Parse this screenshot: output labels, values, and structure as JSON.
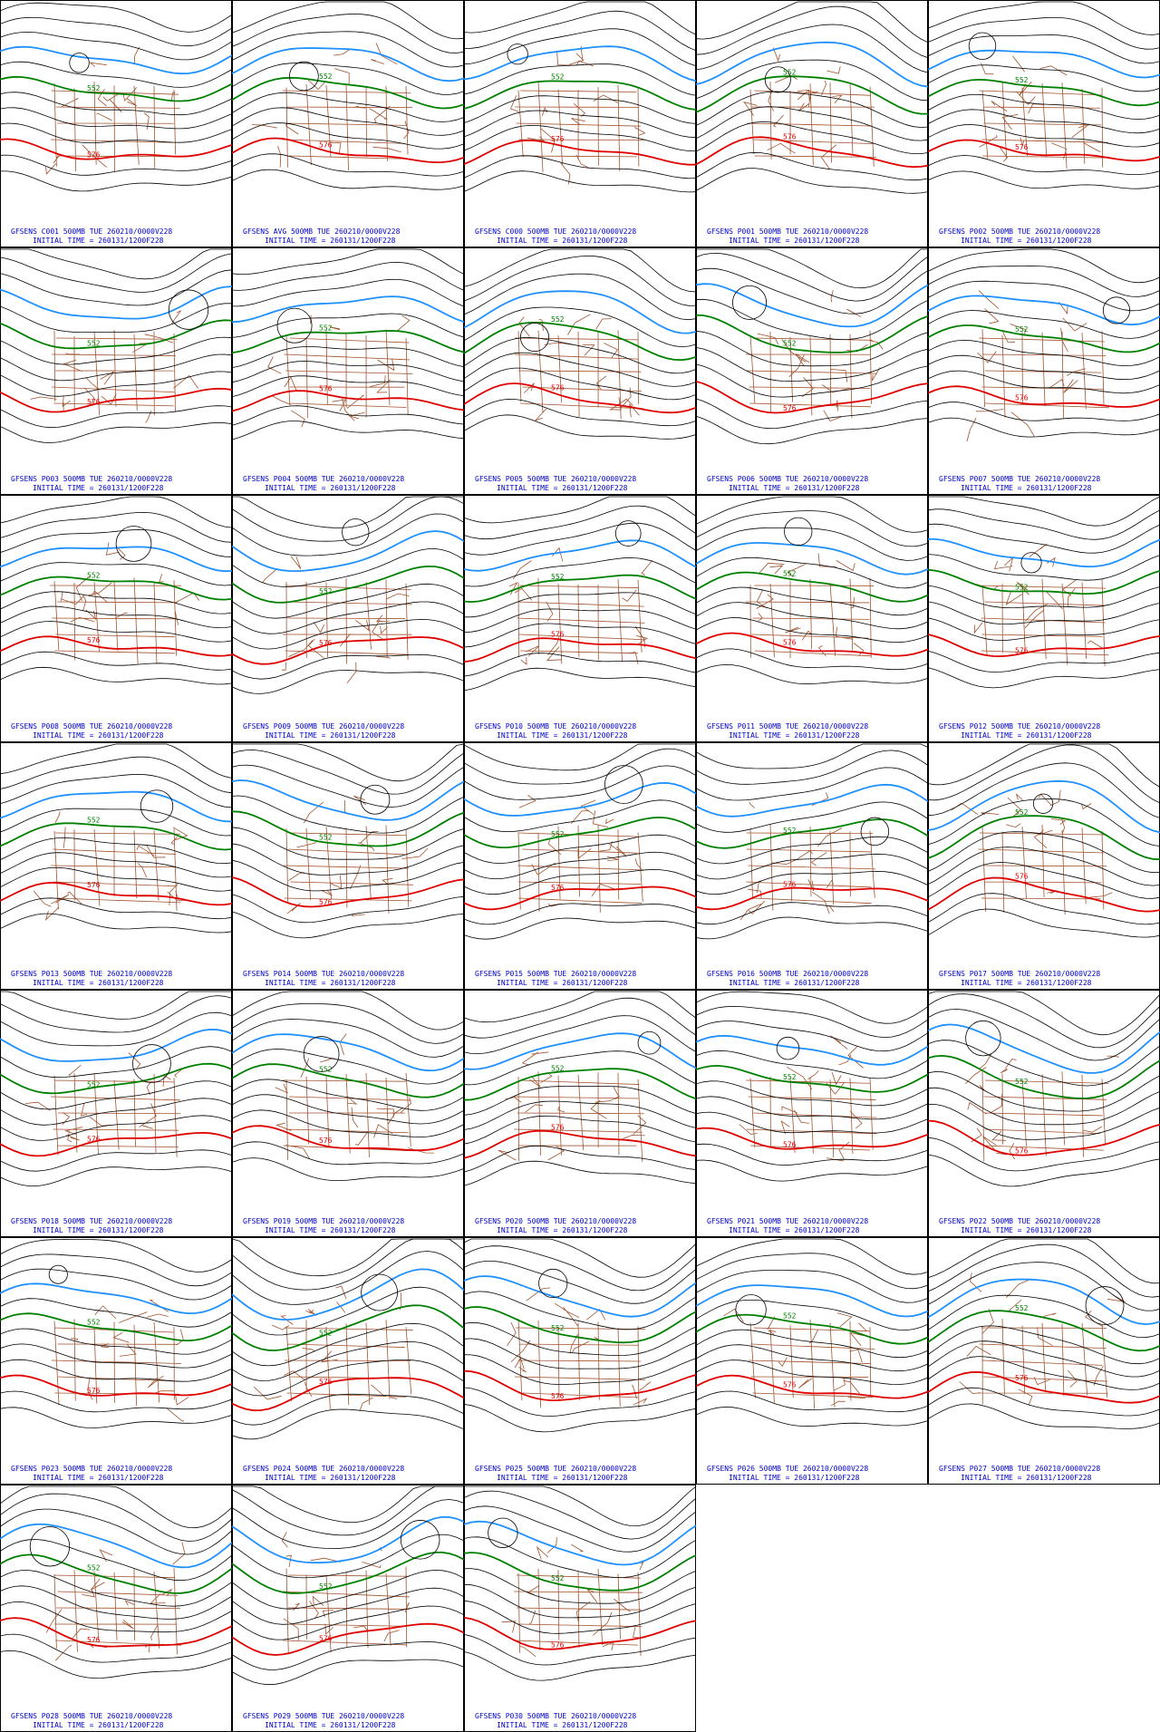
{
  "panels": [
    {
      "line1": "GFSENS C001 500MB TUE 260210/0000V228",
      "line2": "INITIAL TIME = 260131/1200F228",
      "contour_labels": [
        "552",
        "576"
      ]
    },
    {
      "line1": "GFSENS AVG 500MB TUE 260210/0000V228",
      "line2": "INITIAL TIME = 260131/1200F228",
      "contour_labels": [
        "552",
        "576"
      ]
    },
    {
      "line1": "GFSENS C000 500MB TUE 260210/0000V228",
      "line2": "INITIAL TIME = 260131/1200F228",
      "contour_labels": [
        "552",
        "576"
      ]
    },
    {
      "line1": "GFSENS P001 500MB TUE 260210/0000V228",
      "line2": "INITIAL TIME = 260131/1200F228",
      "contour_labels": [
        "552",
        "576"
      ]
    },
    {
      "line1": "GFSENS P002 500MB TUE 260210/0000V228",
      "line2": "INITIAL TIME = 260131/1200F228",
      "contour_labels": [
        "552",
        "576"
      ]
    },
    {
      "line1": "GFSENS P003 500MB TUE 260210/0000V228",
      "line2": "INITIAL TIME = 260131/1200F228",
      "contour_labels": [
        "552",
        "576"
      ]
    },
    {
      "line1": "GFSENS P004 500MB TUE 260210/0000V228",
      "line2": "INITIAL TIME = 260131/1200F228",
      "contour_labels": [
        "552",
        "576"
      ]
    },
    {
      "line1": "GFSENS P005 500MB TUE 260210/0000V228",
      "line2": "INITIAL TIME = 260131/1200F228",
      "contour_labels": [
        "552",
        "576"
      ]
    },
    {
      "line1": "GFSENS P006 500MB TUE 260210/0000V228",
      "line2": "INITIAL TIME = 260131/1200F228",
      "contour_labels": [
        "552",
        "576"
      ]
    },
    {
      "line1": "GFSENS P007 500MB TUE 260210/0000V228",
      "line2": "INITIAL TIME = 260131/1200F228",
      "contour_labels": [
        "552",
        "576"
      ]
    },
    {
      "line1": "GFSENS P008 500MB TUE 260210/0000V228",
      "line2": "INITIAL TIME = 260131/1200F228",
      "contour_labels": [
        "552",
        "576"
      ]
    },
    {
      "line1": "GFSENS P009 500MB TUE 260210/0000V228",
      "line2": "INITIAL TIME = 260131/1200F228",
      "contour_labels": [
        "552",
        "576"
      ]
    },
    {
      "line1": "GFSENS P010 500MB TUE 260210/0000V228",
      "line2": "INITIAL TIME = 260131/1200F228",
      "contour_labels": [
        "552",
        "576"
      ]
    },
    {
      "line1": "GFSENS P011 500MB TUE 260210/0000V228",
      "line2": "INITIAL TIME = 260131/1200F228",
      "contour_labels": [
        "552",
        "576"
      ]
    },
    {
      "line1": "GFSENS P012 500MB TUE 260210/0000V228",
      "line2": "INITIAL TIME = 260131/1200F228",
      "contour_labels": [
        "552",
        "576"
      ]
    },
    {
      "line1": "GFSENS P013 500MB TUE 260210/0000V228",
      "line2": "INITIAL TIME = 260131/1200F228",
      "contour_labels": [
        "552",
        "576"
      ]
    },
    {
      "line1": "GFSENS P014 500MB TUE 260210/0000V228",
      "line2": "INITIAL TIME = 260131/1200F228",
      "contour_labels": [
        "552",
        "576"
      ]
    },
    {
      "line1": "GFSENS P015 500MB TUE 260210/0000V228",
      "line2": "INITIAL TIME = 260131/1200F228",
      "contour_labels": [
        "552",
        "576"
      ]
    },
    {
      "line1": "GFSENS P016 500MB TUE 260210/0000V228",
      "line2": "INITIAL TIME = 260131/1200F228",
      "contour_labels": [
        "552",
        "576"
      ]
    },
    {
      "line1": "GFSENS P017 500MB TUE 260210/0000V228",
      "line2": "INITIAL TIME = 260131/1200F228",
      "contour_labels": [
        "552",
        "576"
      ]
    },
    {
      "line1": "GFSENS P018 500MB TUE 260210/0000V228",
      "line2": "INITIAL TIME = 260131/1200F228",
      "contour_labels": [
        "552",
        "576"
      ]
    },
    {
      "line1": "GFSENS P019 500MB TUE 260210/0000V228",
      "line2": "INITIAL TIME = 260131/1200F228",
      "contour_labels": [
        "552",
        "576"
      ]
    },
    {
      "line1": "GFSENS P020 500MB TUE 260210/0000V228",
      "line2": "INITIAL TIME = 260131/1200F228",
      "contour_labels": [
        "552",
        "576"
      ]
    },
    {
      "line1": "GFSENS P021 500MB TUE 260210/0000V228",
      "line2": "INITIAL TIME = 260131/1200F228",
      "contour_labels": [
        "552",
        "576"
      ]
    },
    {
      "line1": "GFSENS P022 500MB TUE 260210/0000V228",
      "line2": "INITIAL TIME = 260131/1200F228",
      "contour_labels": [
        "552",
        "576"
      ]
    },
    {
      "line1": "GFSENS P023 500MB TUE 260210/0000V228",
      "line2": "INITIAL TIME = 260131/1200F228",
      "contour_labels": [
        "552",
        "576"
      ]
    },
    {
      "line1": "GFSENS P024 500MB TUE 260210/0000V228",
      "line2": "INITIAL TIME = 260131/1200F228",
      "contour_labels": [
        "552",
        "576"
      ]
    },
    {
      "line1": "GFSENS P025 500MB TUE 260210/0000V228",
      "line2": "INITIAL TIME = 260131/1200F228",
      "contour_labels": [
        "552",
        "576"
      ]
    },
    {
      "line1": "GFSENS P026 500MB TUE 260210/0000V228",
      "line2": "INITIAL TIME = 260131/1200F228",
      "contour_labels": [
        "552",
        "576"
      ]
    },
    {
      "line1": "GFSENS P027 500MB TUE 260210/0000V228",
      "line2": "INITIAL TIME = 260131/1200F228",
      "contour_labels": [
        "552",
        "576"
      ]
    },
    {
      "line1": "GFSENS P028 500MB TUE 260210/0000V228",
      "line2": "INITIAL TIME = 260131/1200F228",
      "contour_labels": [
        "552",
        "576"
      ]
    },
    {
      "line1": "GFSENS P029 500MB TUE 260210/0000V228",
      "line2": "INITIAL TIME = 260131/1200F228",
      "contour_labels": [
        "552",
        "576"
      ]
    },
    {
      "line1": "GFSENS P030 500MB TUE 260210/0000V228",
      "line2": "INITIAL TIME = 260131/1200F228",
      "contour_labels": [
        "552",
        "576"
      ]
    }
  ]
}
